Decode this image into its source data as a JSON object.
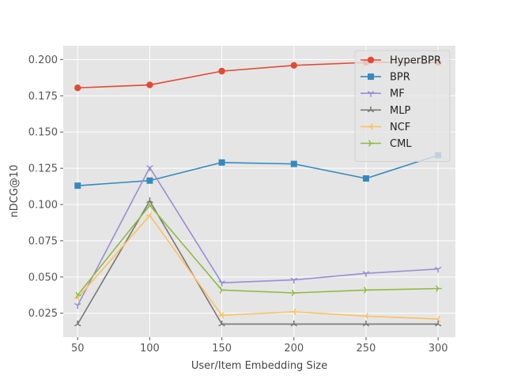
{
  "chart_data": {
    "type": "line",
    "xlabel": "User/Item Embedding Size",
    "ylabel": "nDCG@10",
    "x": [
      50,
      100,
      150,
      200,
      250,
      300
    ],
    "xticks": [
      "50",
      "100",
      "150",
      "200",
      "250",
      "300"
    ],
    "yticks": [
      "0.025",
      "0.050",
      "0.075",
      "0.100",
      "0.125",
      "0.150",
      "0.175",
      "0.200"
    ],
    "xlim": [
      40,
      312
    ],
    "ylim": [
      0.0085,
      0.2095
    ],
    "grid": true,
    "legend_position": "top-right",
    "series": [
      {
        "name": "HyperBPR",
        "color": "#e24a33",
        "marker": "circle",
        "values": [
          0.1805,
          0.1825,
          0.192,
          0.196,
          0.198,
          0.198
        ]
      },
      {
        "name": "BPR",
        "color": "#348abd",
        "marker": "square",
        "values": [
          0.113,
          0.1165,
          0.129,
          0.128,
          0.118,
          0.134
        ]
      },
      {
        "name": "MF",
        "color": "#988ed5",
        "marker": "tri_down",
        "values": [
          0.0305,
          0.1255,
          0.046,
          0.048,
          0.0525,
          0.0555
        ]
      },
      {
        "name": "MLP",
        "color": "#777777",
        "marker": "tri_up",
        "values": [
          0.0175,
          0.1025,
          0.0175,
          0.0175,
          0.0175,
          0.0175
        ]
      },
      {
        "name": "NCF",
        "color": "#fbc15e",
        "marker": "tri_left",
        "values": [
          0.0355,
          0.0925,
          0.0235,
          0.026,
          0.023,
          0.021
        ]
      },
      {
        "name": "CML",
        "color": "#8eba42",
        "marker": "tri_right",
        "values": [
          0.0375,
          0.0995,
          0.041,
          0.039,
          0.041,
          0.042
        ]
      }
    ]
  }
}
